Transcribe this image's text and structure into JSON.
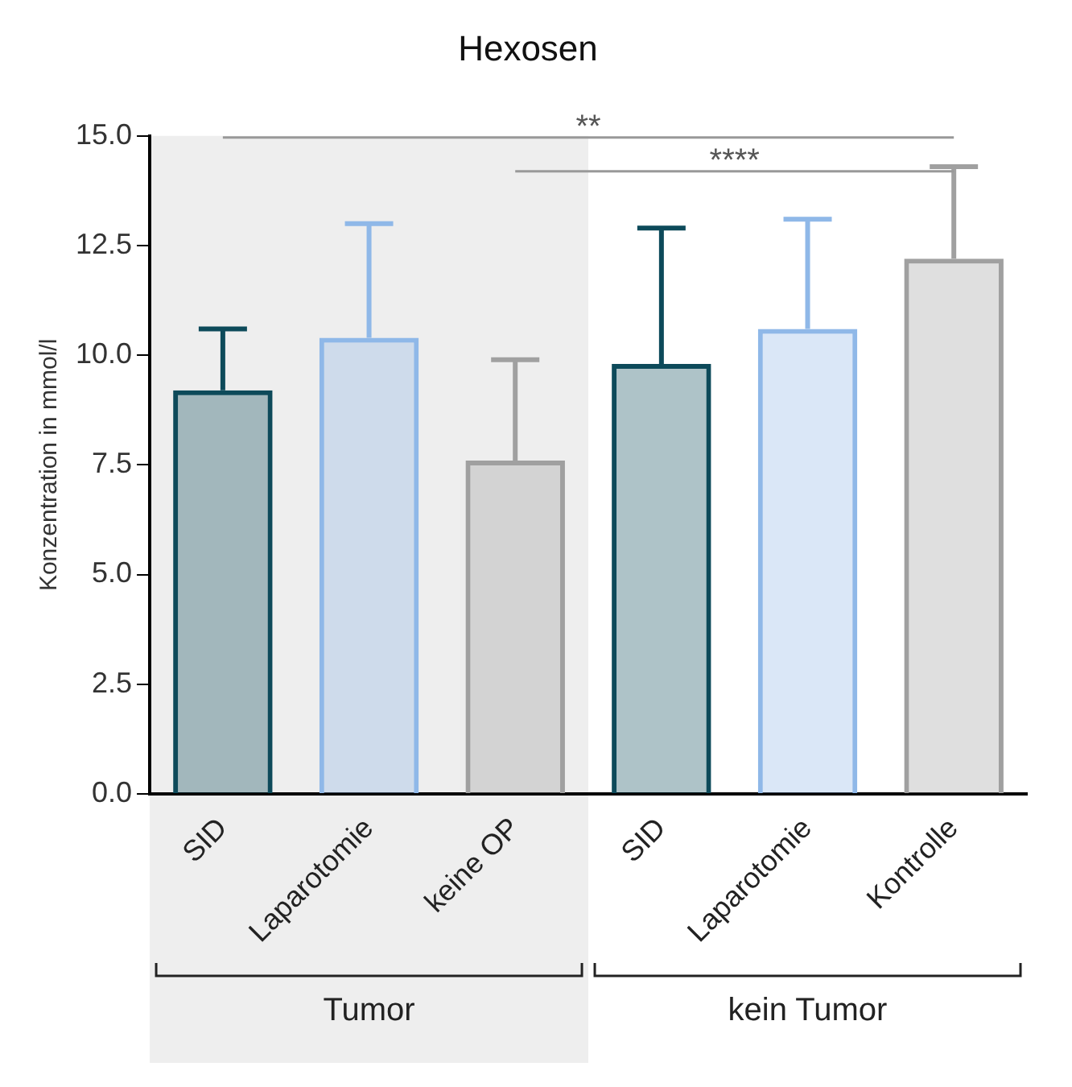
{
  "chart_data": {
    "type": "bar",
    "title": "Hexosen",
    "ylabel": "Konzentration in mmol/l",
    "categories": [
      "SID",
      "Laparotomie",
      "keine OP",
      "SID",
      "Laparotomie",
      "Kontrolle"
    ],
    "values": [
      9.2,
      10.4,
      7.6,
      9.8,
      10.6,
      12.2
    ],
    "colors": [
      "#0d4a5a",
      "#8fb8e8",
      "#a0a0a0",
      "#0d4a5a",
      "#8fb8e8",
      "#a0a0a0"
    ],
    "errors": [
      [
        9.2,
        10.6
      ],
      [
        10.4,
        13.0
      ],
      [
        7.6,
        9.9
      ],
      [
        9.8,
        12.9
      ],
      [
        10.6,
        13.1
      ],
      [
        12.2,
        14.3
      ]
    ],
    "ylim": [
      0,
      15
    ],
    "yticks": [
      {
        "value": 0,
        "label": "0.0"
      },
      {
        "value": 2.5,
        "label": "2.5"
      },
      {
        "value": 5,
        "label": "5.0"
      },
      {
        "value": 7.5,
        "label": "7.5"
      },
      {
        "value": 10,
        "label": "10.0"
      },
      {
        "value": 12.5,
        "label": "12.5"
      },
      {
        "value": 15,
        "label": "15.0"
      }
    ],
    "annotations": [
      "**",
      "****",
      "Tumor",
      "kein Tumor"
    ],
    "bands": [
      {
        "axis": "x",
        "from": "SID",
        "to": "keine OP",
        "color": "#eeeeee"
      }
    ],
    "grid": false,
    "legend": false
  }
}
